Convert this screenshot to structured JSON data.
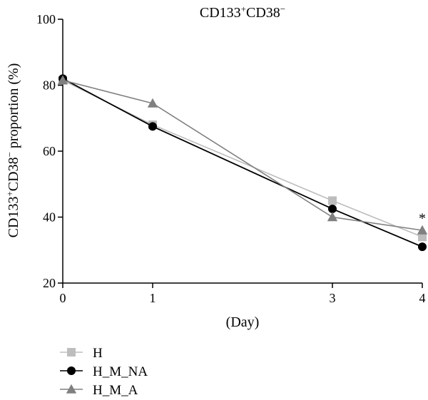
{
  "chart_data": {
    "type": "line",
    "title_main": "CD133",
    "title_sup1": "+",
    "title_mid": "CD38",
    "title_sup2": "−",
    "ylabel_a": "CD133",
    "ylabel_sup1": "+",
    "ylabel_b": "CD38",
    "ylabel_sup2": "−",
    "ylabel_c": " proportion (%)",
    "xlabel": "(Day)",
    "x": [
      0,
      1,
      3,
      4
    ],
    "x_tick_labels": [
      "0",
      "1",
      "3",
      "4"
    ],
    "ylim": [
      20,
      100
    ],
    "y_ticks": [
      20,
      40,
      60,
      80,
      100
    ],
    "y_tick_labels": [
      "20",
      "40",
      "60",
      "80",
      "100"
    ],
    "grid": false,
    "legend_position": "bottom-left",
    "annotation": {
      "text": "*",
      "x": 4,
      "y": 40
    },
    "series": [
      {
        "name": "H",
        "marker": "square",
        "color": "#bdbdbd",
        "values": [
          81.5,
          68.0,
          45.0,
          34.0
        ]
      },
      {
        "name": "H_M_NA",
        "marker": "circle",
        "color": "#000000",
        "values": [
          82.0,
          67.5,
          42.5,
          31.0
        ]
      },
      {
        "name": "H_M_A",
        "marker": "triangle",
        "color": "#808080",
        "values": [
          81.5,
          74.5,
          40.0,
          36.0
        ]
      }
    ]
  }
}
